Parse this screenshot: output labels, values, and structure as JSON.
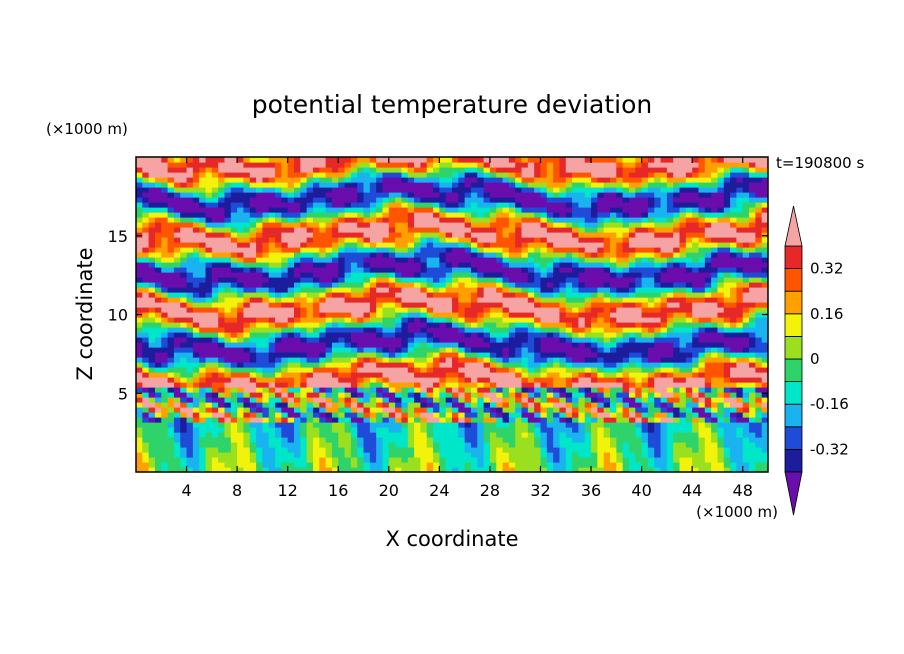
{
  "chart_data": {
    "type": "heatmap",
    "title": "potential temperature deviation",
    "xlabel": "X coordinate",
    "ylabel": "Z coordinate",
    "x_unit": "(×1000 m)",
    "y_unit": "(×1000 m)",
    "time_label": "t=190800 s",
    "xlim": [
      0,
      50
    ],
    "ylim": [
      0,
      20
    ],
    "x_ticks": [
      4,
      8,
      12,
      16,
      20,
      24,
      28,
      32,
      36,
      40,
      44,
      48
    ],
    "y_ticks": [
      5,
      10,
      15
    ],
    "x_tick_labels": [
      "4",
      "8",
      "12",
      "16",
      "20",
      "24",
      "28",
      "32",
      "36",
      "40",
      "44",
      "48"
    ],
    "y_tick_labels": [
      "5",
      "10",
      "15"
    ],
    "colorbar": {
      "levels": [
        -0.4,
        -0.32,
        -0.24,
        -0.16,
        -0.08,
        0,
        0.08,
        0.16,
        0.24,
        0.32,
        0.4
      ],
      "colors": [
        "#6a0dad",
        "#1c1c9c",
        "#1e4bd8",
        "#19b4f0",
        "#00e6c8",
        "#2ed46a",
        "#9be01e",
        "#f2f20a",
        "#ffa000",
        "#ff5500",
        "#e62828",
        "#f5a3a3"
      ],
      "tick_labels": [
        "0.32",
        "0.16",
        "0",
        "-0.16",
        "-0.32"
      ],
      "tick_values": [
        0.32,
        0.16,
        0,
        -0.16,
        -0.32
      ]
    }
  }
}
